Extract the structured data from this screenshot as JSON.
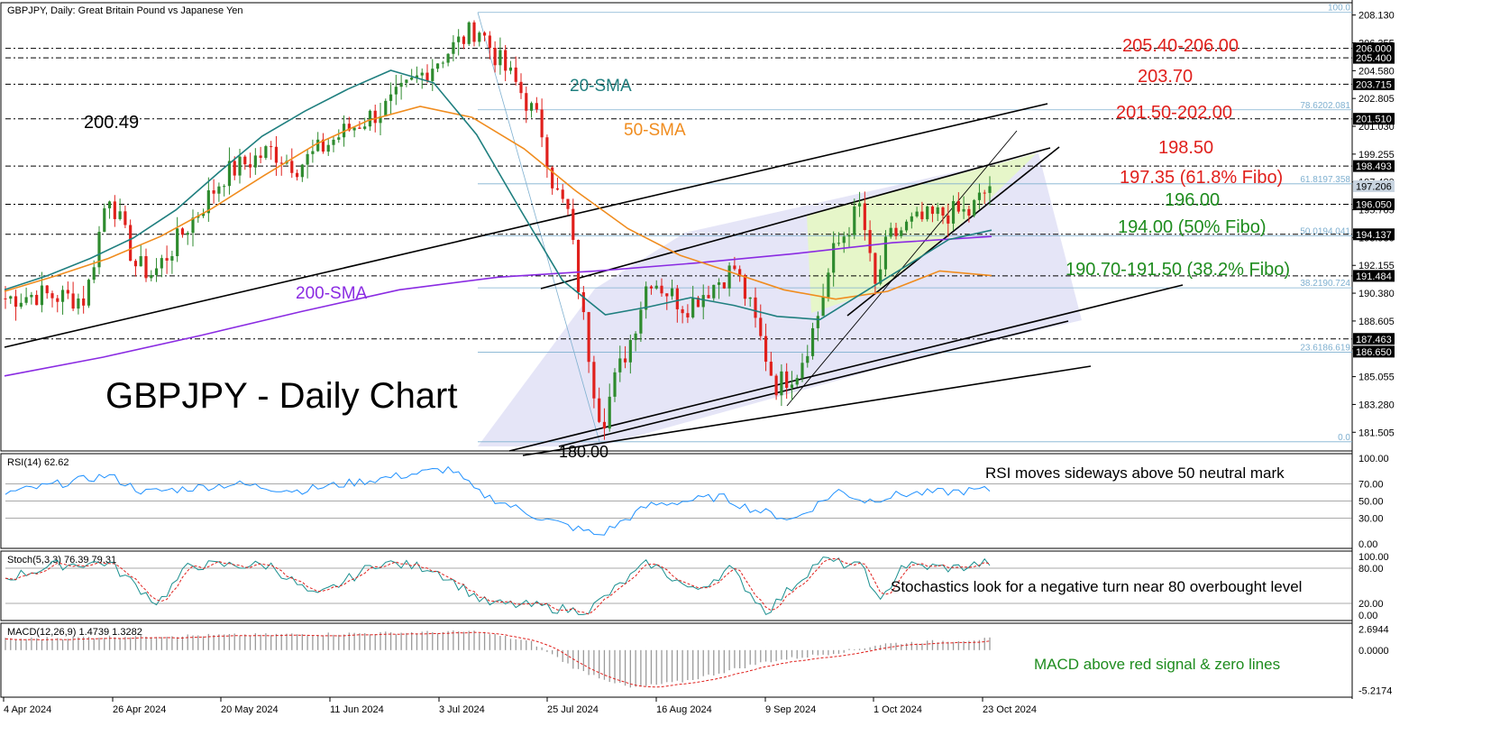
{
  "header": {
    "title": "GBPJPY, Daily:  Great Britain Pound vs Japanese Yen"
  },
  "watermark": "GBPJPY - Daily Chart",
  "colors": {
    "bull": "#2e8b2e",
    "bear": "#e0201c",
    "sma20": "#1f7f7f",
    "sma50": "#f08c1e",
    "sma200": "#8a2be2",
    "resistance": "#e0201c",
    "support": "#1e8c1e",
    "fib": "#7fb0d0"
  },
  "chart_data": [
    {
      "type": "candlestick",
      "title": "GBPJPY, Daily:  Great Britain Pound vs Japanese Yen",
      "y_ticks": [
        "208.130",
        "206.355",
        "204.580",
        "202.805",
        "201.030",
        "199.255",
        "197.480",
        "195.705",
        "193.930",
        "192.155",
        "190.380",
        "188.605",
        "186.830",
        "185.055",
        "183.280",
        "181.505"
      ],
      "ylim": [
        180.6,
        208.6
      ],
      "x_ticks": [
        "4 Apr 2024",
        "26 Apr 2024",
        "20 May 2024",
        "11 Jun 2024",
        "3 Jul 2024",
        "25 Jul 2024",
        "16 Aug 2024",
        "9 Sep 2024",
        "1 Oct 2024",
        "23 Oct 2024"
      ],
      "price_tags": [
        {
          "label": "206.000",
          "value": 206.0
        },
        {
          "label": "205.400",
          "value": 205.4
        },
        {
          "label": "203.715",
          "value": 203.715
        },
        {
          "label": "201.510",
          "value": 201.51
        },
        {
          "label": "198.493",
          "value": 198.493
        },
        {
          "label": "197.206",
          "value": 197.206
        },
        {
          "label": "196.050",
          "value": 196.05
        },
        {
          "label": "194.137",
          "value": 194.137
        },
        {
          "label": "191.484",
          "value": 191.484
        },
        {
          "label": "187.463",
          "value": 187.463
        },
        {
          "label": "186.650",
          "value": 186.65
        }
      ],
      "current_price": "197.206",
      "levels": [
        {
          "label": "205.40-206.00",
          "value": 205.7,
          "kind": "resistance"
        },
        {
          "label": "203.70",
          "value": 203.715,
          "kind": "resistance"
        },
        {
          "label": "201.50-202.00",
          "value": 201.75,
          "kind": "resistance"
        },
        {
          "label": "198.50",
          "value": 198.493,
          "kind": "resistance"
        },
        {
          "label": "197.35 (61.8% Fibo)",
          "value": 197.35,
          "kind": "resistance"
        },
        {
          "label": "196.00",
          "value": 196.05,
          "kind": "support"
        },
        {
          "label": "194.00 (50% Fibo)",
          "value": 194.0,
          "kind": "support"
        },
        {
          "label": "190.70-191.50 (38.2% Fibo)",
          "value": 191.1,
          "kind": "support"
        }
      ],
      "fib_levels": [
        {
          "label": "100.0",
          "value": 208.3
        },
        {
          "label": "78.6202.081",
          "value": 202.081
        },
        {
          "label": "61.8197.358",
          "value": 197.358
        },
        {
          "label": "50.0194.041",
          "value": 194.041
        },
        {
          "label": "38.2190.724",
          "value": 190.724
        },
        {
          "label": "23.6186.619",
          "value": 186.619
        },
        {
          "label": "0.0",
          "value": 180.9
        }
      ],
      "annotations": [
        "200.49",
        "180.00"
      ],
      "series": [
        {
          "name": "20-SMA",
          "values": [
            190.6,
            191.5,
            192.6,
            193.9,
            195.7,
            198.1,
            200.4,
            202.0,
            203.4,
            204.6,
            203.8,
            200.5,
            195.8,
            191.2,
            189.0,
            189.5,
            190.1,
            189.6,
            188.9,
            188.7,
            190.4,
            192.1,
            193.8,
            194.4
          ]
        },
        {
          "name": "50-SMA",
          "values": [
            190.5,
            191.5,
            192.6,
            194.0,
            195.8,
            197.9,
            199.9,
            201.4,
            202.3,
            201.6,
            199.6,
            196.9,
            194.5,
            192.8,
            191.7,
            190.6,
            190.0,
            190.5,
            191.8,
            191.5
          ]
        },
        {
          "name": "200-SMA",
          "values": [
            185.1,
            186.3,
            187.7,
            189.2,
            190.6,
            191.4,
            191.8,
            192.3,
            192.9,
            193.6,
            194.0
          ]
        }
      ]
    },
    {
      "type": "line",
      "title": "RSI(14) 62.62",
      "y_ticks": [
        "100.00",
        "70.00",
        "50.00",
        "30.00",
        "0.00"
      ],
      "ylim": [
        0,
        100
      ],
      "annotation": "RSI moves sideways above 50 neutral mark"
    },
    {
      "type": "line",
      "title": "Stoch(5,3,3) 76.39 79.31",
      "y_ticks": [
        "100.00",
        "80.00",
        "20.00",
        "0.00"
      ],
      "ylim": [
        0,
        100
      ],
      "annotation": "Stochastics look for a negative turn near 80 overbought level"
    },
    {
      "type": "bar",
      "title": "MACD(12,26,9) 1.4739 1.3282",
      "y_ticks": [
        "2.6944",
        "0.0000",
        "-5.2174"
      ],
      "ylim": [
        -5.6,
        3.0
      ],
      "annotation": "MACD above red signal & zero lines"
    }
  ]
}
